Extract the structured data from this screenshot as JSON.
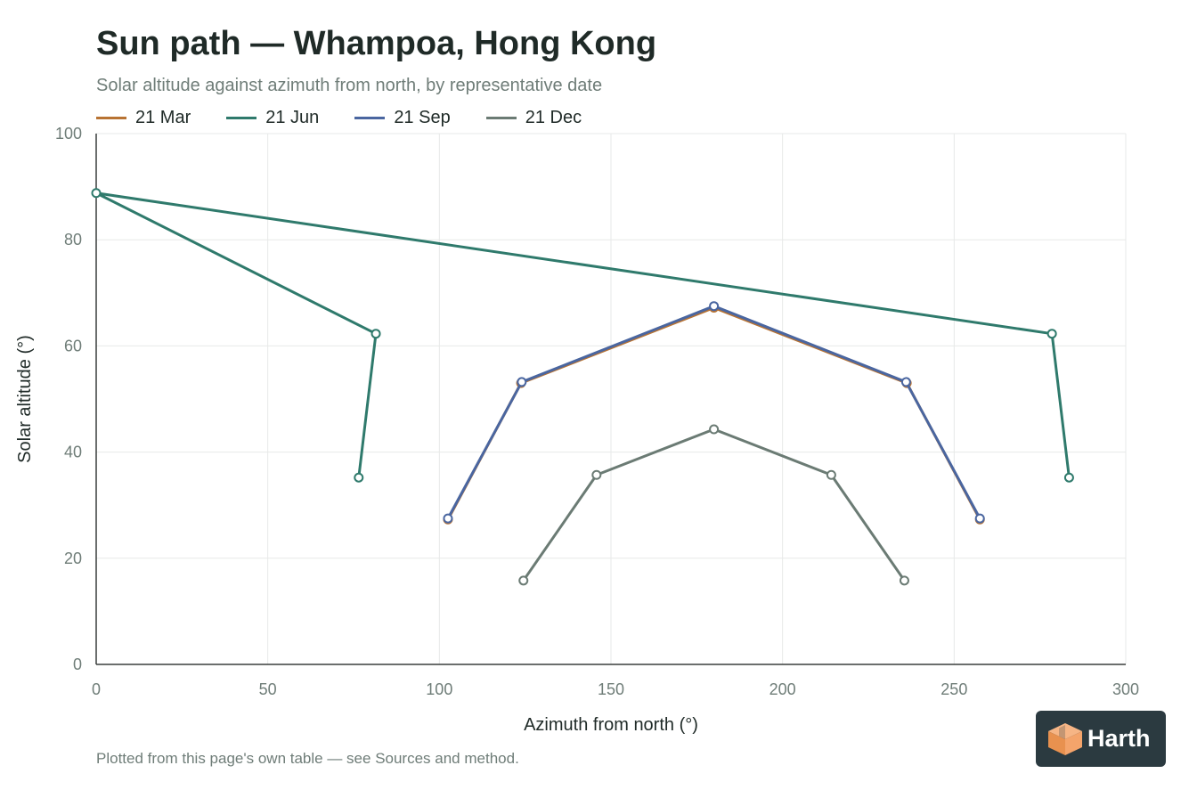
{
  "colors": {
    "mar": "#b87333",
    "jun": "#2f7a6c",
    "sep": "#4a66a0",
    "dec": "#6b7b74",
    "grid": "#e7e9e8",
    "axis": "#3a3f3d",
    "tick_text": "#6f7d78"
  },
  "footnote": "Plotted from this page's own table — see Sources and method.",
  "logo": {
    "text": "Harth",
    "icon": "cube-logo-icon"
  },
  "chart_data": {
    "type": "line",
    "title": "Sun path — Whampoa, Hong Kong",
    "subtitle": "Solar altitude against azimuth from north, by representative date",
    "xlabel": "Azimuth from north (°)",
    "ylabel": "Solar altitude (°)",
    "xlim": [
      0,
      300
    ],
    "ylim": [
      0,
      100
    ],
    "xticks": [
      0,
      50,
      100,
      150,
      200,
      250,
      300
    ],
    "yticks": [
      0,
      20,
      40,
      60,
      80,
      100
    ],
    "grid": true,
    "legend": "top-left",
    "series": [
      {
        "name": "21 Mar",
        "color_key": "mar",
        "points": [
          [
            102.5,
            27.3
          ],
          [
            123.8,
            53.0
          ],
          [
            180.0,
            67.2
          ],
          [
            236.2,
            53.0
          ],
          [
            257.5,
            27.3
          ]
        ]
      },
      {
        "name": "21 Jun",
        "color_key": "jun",
        "points": [
          [
            76.5,
            35.2
          ],
          [
            81.5,
            62.3
          ],
          [
            0.0,
            88.8
          ],
          [
            278.5,
            62.3
          ],
          [
            283.5,
            35.2
          ]
        ]
      },
      {
        "name": "21 Sep",
        "color_key": "sep",
        "points": [
          [
            102.5,
            27.5
          ],
          [
            124.0,
            53.2
          ],
          [
            180.0,
            67.5
          ],
          [
            236.0,
            53.2
          ],
          [
            257.5,
            27.5
          ]
        ]
      },
      {
        "name": "21 Dec",
        "color_key": "dec",
        "points": [
          [
            124.5,
            15.8
          ],
          [
            145.8,
            35.7
          ],
          [
            180.0,
            44.3
          ],
          [
            214.2,
            35.7
          ],
          [
            235.5,
            15.8
          ]
        ]
      }
    ]
  }
}
